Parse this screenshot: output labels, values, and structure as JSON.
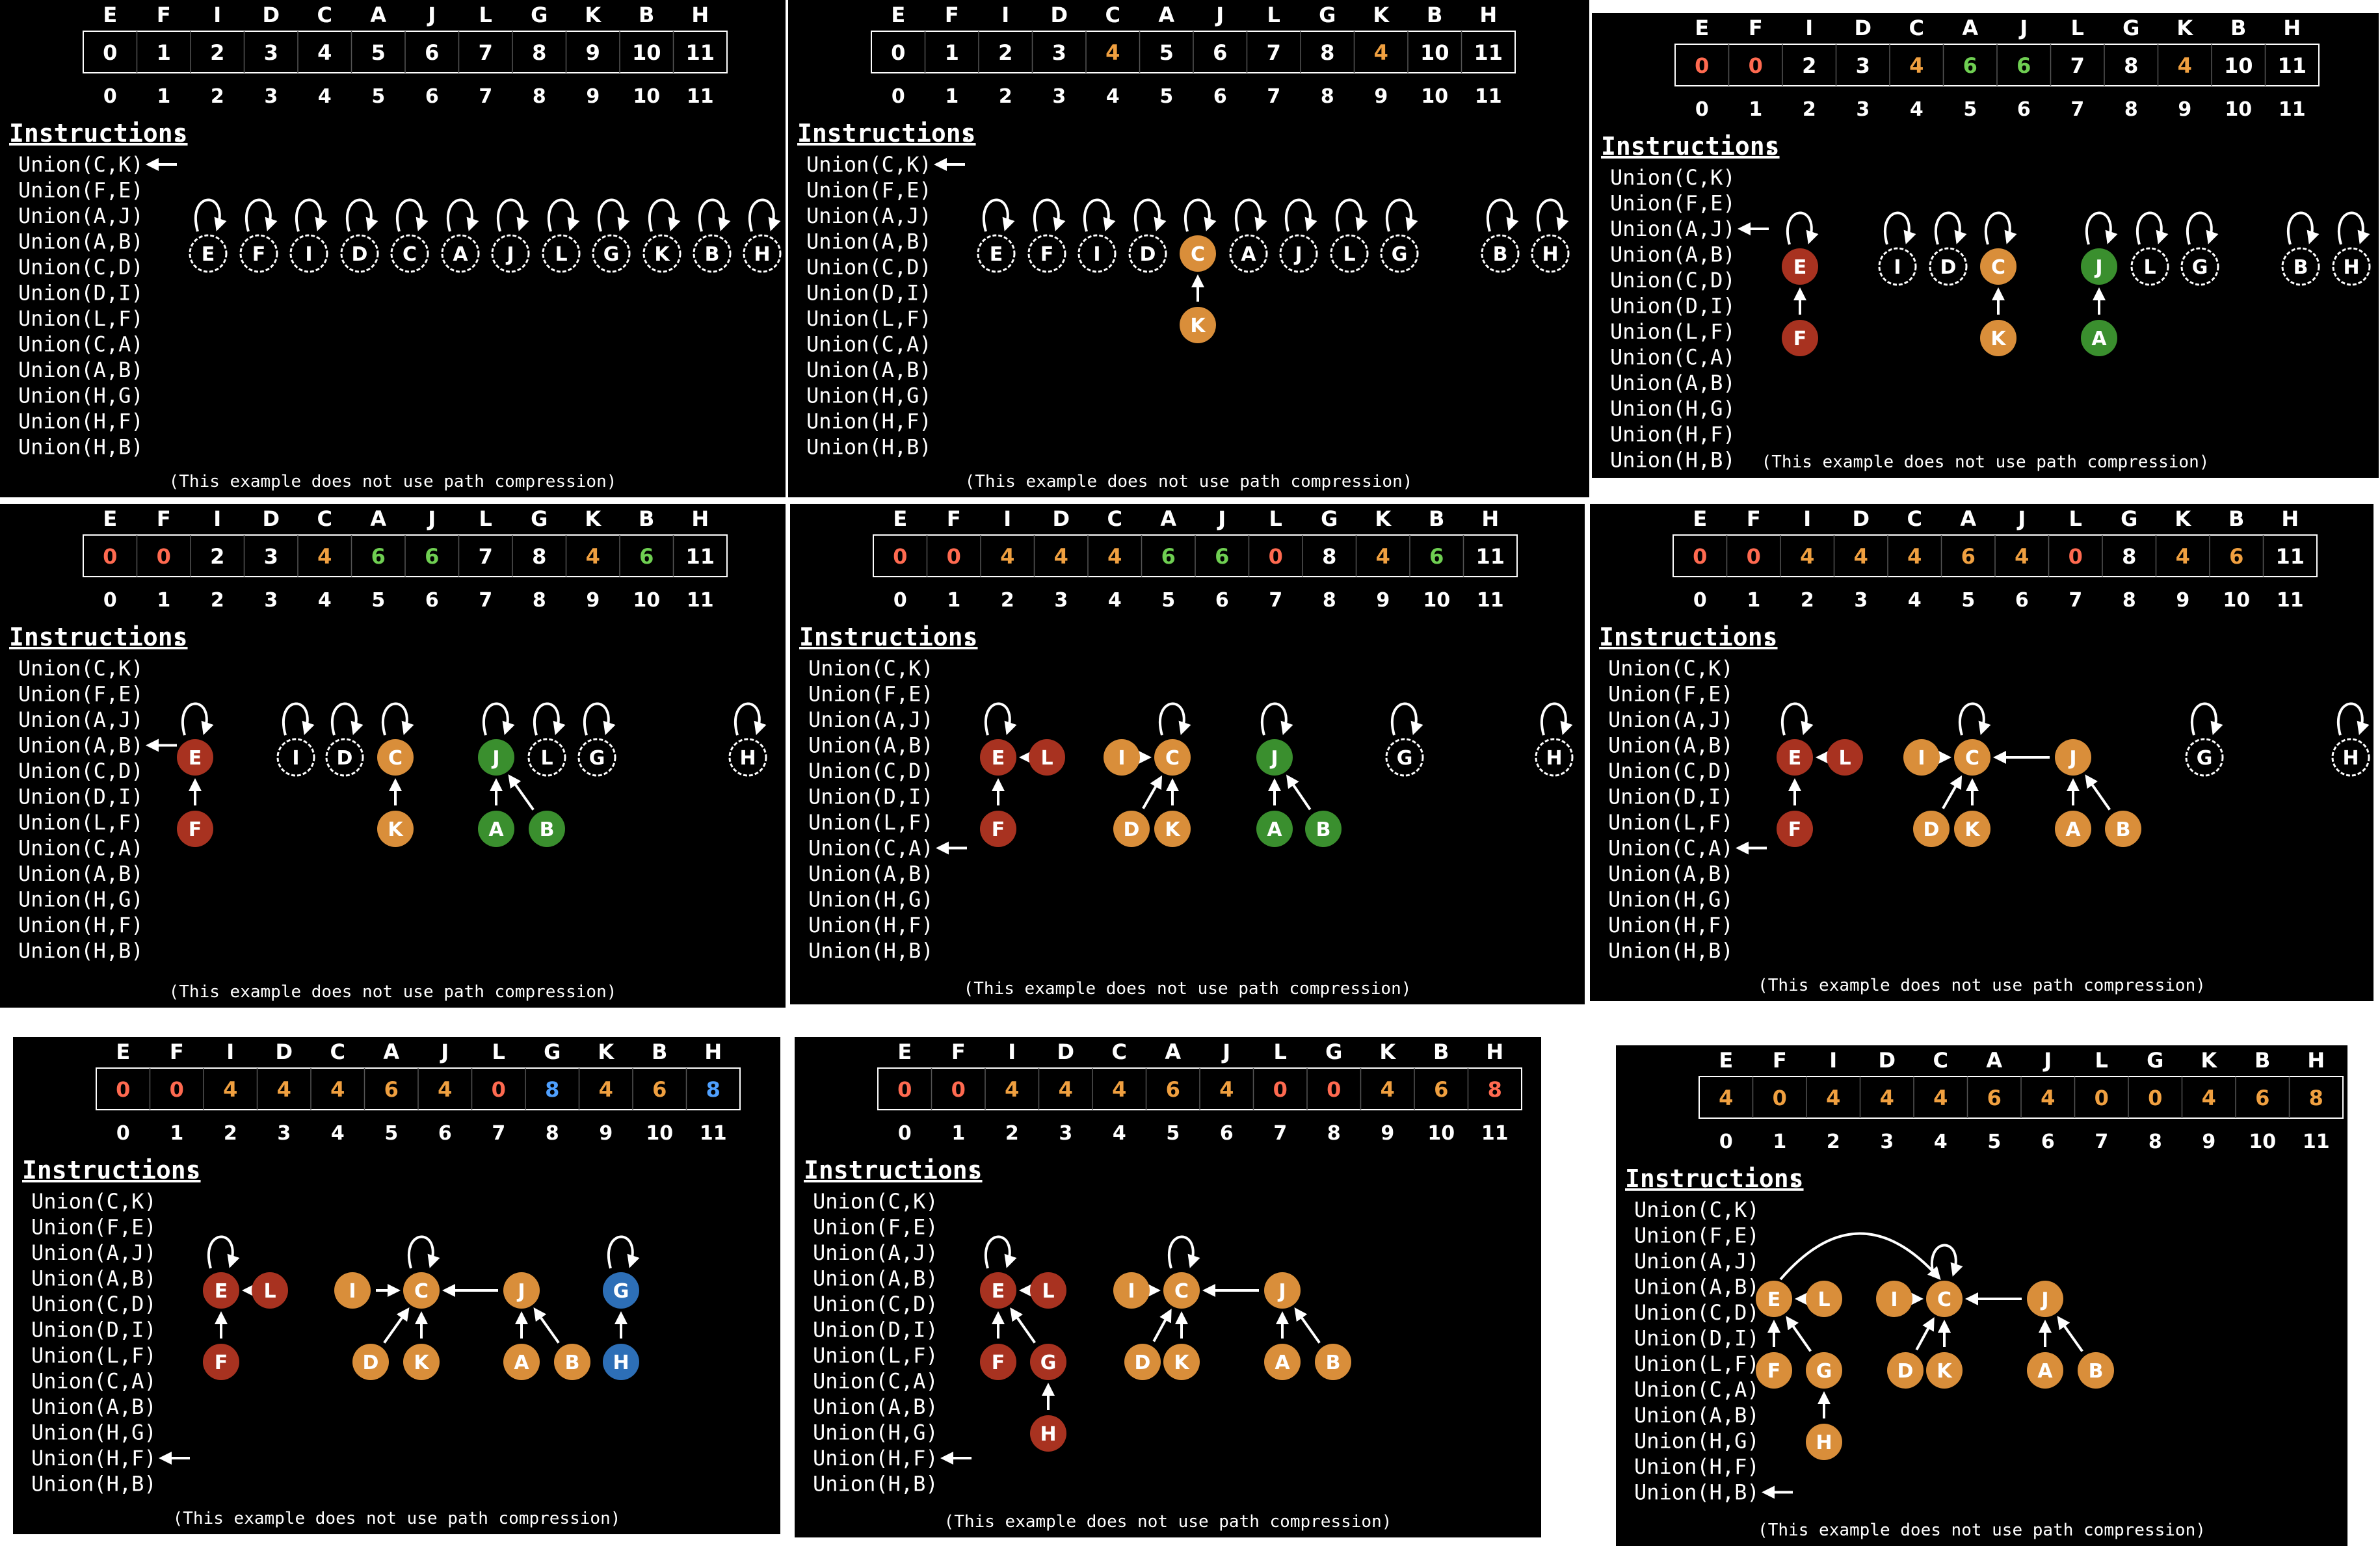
{
  "title": "",
  "letters": [
    "E",
    "F",
    "I",
    "D",
    "C",
    "A",
    "J",
    "L",
    "G",
    "K",
    "B",
    "H"
  ],
  "indices": [
    "0",
    "1",
    "2",
    "3",
    "4",
    "5",
    "6",
    "7",
    "8",
    "9",
    "10",
    "11"
  ],
  "instructions_heading": "Instructions",
  "instructions": [
    "Union(C,K)",
    "Union(F,E)",
    "Union(A,J)",
    "Union(A,B)",
    "Union(C,D)",
    "Union(D,I)",
    "Union(L,F)",
    "Union(C,A)",
    "Union(A,B)",
    "Union(H,G)",
    "Union(H,F)",
    "Union(H,B)"
  ],
  "footer_note": "(This example does not use path compression)",
  "colors": {
    "background": "#000000",
    "text": "#ffffff",
    "red": "#a83220",
    "orange": "#d98e3a",
    "green": "#3a8f2e",
    "blue": "#2d6fb7",
    "green_text": "#6fcf52",
    "blue_text": "#4fa0ff",
    "red_text": "#ff6a50",
    "orange_text": "#f0a040"
  },
  "panels": [
    {
      "name": "step-1",
      "array_values": [
        "0",
        "1",
        "2",
        "3",
        "4",
        "5",
        "6",
        "7",
        "8",
        "9",
        "10",
        "11"
      ],
      "value_colors": [
        "white",
        "white",
        "white",
        "white",
        "white",
        "white",
        "white",
        "white",
        "white",
        "white",
        "white",
        "white"
      ],
      "current_instruction": 0,
      "nodes": [
        {
          "label": "E",
          "color": "none",
          "root": true
        },
        {
          "label": "F",
          "color": "none",
          "root": true
        },
        {
          "label": "I",
          "color": "none",
          "root": true
        },
        {
          "label": "D",
          "color": "none",
          "root": true
        },
        {
          "label": "C",
          "color": "none",
          "root": true
        },
        {
          "label": "A",
          "color": "none",
          "root": true
        },
        {
          "label": "J",
          "color": "none",
          "root": true
        },
        {
          "label": "L",
          "color": "none",
          "root": true
        },
        {
          "label": "G",
          "color": "none",
          "root": true
        },
        {
          "label": "K",
          "color": "none",
          "root": true
        },
        {
          "label": "B",
          "color": "none",
          "root": true
        },
        {
          "label": "H",
          "color": "none",
          "root": true
        }
      ],
      "edges": []
    },
    {
      "name": "step-2",
      "array_values": [
        "0",
        "1",
        "2",
        "3",
        "4",
        "5",
        "6",
        "7",
        "8",
        "4",
        "10",
        "11"
      ],
      "value_colors": [
        "white",
        "white",
        "white",
        "white",
        "orange",
        "white",
        "white",
        "white",
        "white",
        "orange",
        "white",
        "white"
      ],
      "current_instruction": 0,
      "nodes": [
        {
          "label": "E",
          "color": "none",
          "root": true
        },
        {
          "label": "F",
          "color": "none",
          "root": true
        },
        {
          "label": "I",
          "color": "none",
          "root": true
        },
        {
          "label": "D",
          "color": "none",
          "root": true
        },
        {
          "label": "C",
          "color": "orange",
          "root": true
        },
        {
          "label": "A",
          "color": "none",
          "root": true
        },
        {
          "label": "J",
          "color": "none",
          "root": true
        },
        {
          "label": "L",
          "color": "none",
          "root": true
        },
        {
          "label": "G",
          "color": "none",
          "root": true
        },
        {
          "label": "K",
          "color": "orange",
          "root": false
        },
        {
          "label": "B",
          "color": "none",
          "root": true
        },
        {
          "label": "H",
          "color": "none",
          "root": true
        }
      ],
      "edges": [
        [
          "K",
          "C"
        ]
      ]
    },
    {
      "name": "step-3",
      "array_values": [
        "0",
        "0",
        "2",
        "3",
        "4",
        "6",
        "6",
        "7",
        "8",
        "4",
        "10",
        "11"
      ],
      "value_colors": [
        "red",
        "red",
        "white",
        "white",
        "orange",
        "green",
        "green",
        "white",
        "white",
        "orange",
        "white",
        "white"
      ],
      "current_instruction": 2,
      "nodes": [
        {
          "label": "E",
          "color": "red",
          "root": true
        },
        {
          "label": "F",
          "color": "red",
          "root": false
        },
        {
          "label": "I",
          "color": "none",
          "root": true
        },
        {
          "label": "D",
          "color": "none",
          "root": true
        },
        {
          "label": "C",
          "color": "orange",
          "root": true
        },
        {
          "label": "K",
          "color": "orange",
          "root": false
        },
        {
          "label": "J",
          "color": "green",
          "root": true
        },
        {
          "label": "A",
          "color": "green",
          "root": false
        },
        {
          "label": "L",
          "color": "none",
          "root": true
        },
        {
          "label": "G",
          "color": "none",
          "root": true
        },
        {
          "label": "B",
          "color": "none",
          "root": true
        },
        {
          "label": "H",
          "color": "none",
          "root": true
        }
      ],
      "edges": [
        [
          "F",
          "E"
        ],
        [
          "K",
          "C"
        ],
        [
          "A",
          "J"
        ]
      ]
    },
    {
      "name": "step-4",
      "array_values": [
        "0",
        "0",
        "2",
        "3",
        "4",
        "6",
        "6",
        "7",
        "8",
        "4",
        "6",
        "11"
      ],
      "value_colors": [
        "red",
        "red",
        "white",
        "white",
        "orange",
        "green",
        "green",
        "white",
        "white",
        "orange",
        "green",
        "white"
      ],
      "current_instruction": 3,
      "nodes": [
        {
          "label": "E",
          "color": "red",
          "root": true
        },
        {
          "label": "F",
          "color": "red",
          "root": false
        },
        {
          "label": "I",
          "color": "none",
          "root": true
        },
        {
          "label": "D",
          "color": "none",
          "root": true
        },
        {
          "label": "C",
          "color": "orange",
          "root": true
        },
        {
          "label": "K",
          "color": "orange",
          "root": false
        },
        {
          "label": "J",
          "color": "green",
          "root": true
        },
        {
          "label": "A",
          "color": "green",
          "root": false
        },
        {
          "label": "B",
          "color": "green",
          "root": false
        },
        {
          "label": "L",
          "color": "none",
          "root": true
        },
        {
          "label": "G",
          "color": "none",
          "root": true
        },
        {
          "label": "H",
          "color": "none",
          "root": true
        }
      ],
      "edges": [
        [
          "F",
          "E"
        ],
        [
          "K",
          "C"
        ],
        [
          "A",
          "J"
        ],
        [
          "B",
          "J"
        ]
      ]
    },
    {
      "name": "step-5",
      "array_values": [
        "0",
        "0",
        "4",
        "4",
        "4",
        "6",
        "6",
        "0",
        "8",
        "4",
        "6",
        "11"
      ],
      "value_colors": [
        "red",
        "red",
        "orange",
        "orange",
        "orange",
        "green",
        "green",
        "red",
        "white",
        "orange",
        "green",
        "white"
      ],
      "current_instruction": 7,
      "nodes": [
        {
          "label": "E",
          "color": "red",
          "root": true
        },
        {
          "label": "L",
          "color": "red",
          "root": false
        },
        {
          "label": "F",
          "color": "red",
          "root": false
        },
        {
          "label": "I",
          "color": "orange",
          "root": false
        },
        {
          "label": "C",
          "color": "orange",
          "root": true
        },
        {
          "label": "D",
          "color": "orange",
          "root": false
        },
        {
          "label": "K",
          "color": "orange",
          "root": false
        },
        {
          "label": "J",
          "color": "green",
          "root": true
        },
        {
          "label": "A",
          "color": "green",
          "root": false
        },
        {
          "label": "B",
          "color": "green",
          "root": false
        },
        {
          "label": "G",
          "color": "none",
          "root": true
        },
        {
          "label": "H",
          "color": "none",
          "root": true
        }
      ],
      "edges": [
        [
          "L",
          "E"
        ],
        [
          "F",
          "E"
        ],
        [
          "I",
          "C"
        ],
        [
          "D",
          "C"
        ],
        [
          "K",
          "C"
        ],
        [
          "A",
          "J"
        ],
        [
          "B",
          "J"
        ]
      ]
    },
    {
      "name": "step-6",
      "array_values": [
        "0",
        "0",
        "4",
        "4",
        "4",
        "6",
        "4",
        "0",
        "8",
        "4",
        "6",
        "11"
      ],
      "value_colors": [
        "red",
        "red",
        "orange",
        "orange",
        "orange",
        "orange",
        "orange",
        "red",
        "white",
        "orange",
        "orange",
        "white"
      ],
      "current_instruction": 7,
      "nodes": [
        {
          "label": "E",
          "color": "red",
          "root": true
        },
        {
          "label": "L",
          "color": "red",
          "root": false
        },
        {
          "label": "F",
          "color": "red",
          "root": false
        },
        {
          "label": "I",
          "color": "orange",
          "root": false
        },
        {
          "label": "C",
          "color": "orange",
          "root": true
        },
        {
          "label": "D",
          "color": "orange",
          "root": false
        },
        {
          "label": "K",
          "color": "orange",
          "root": false
        },
        {
          "label": "J",
          "color": "orange",
          "root": false
        },
        {
          "label": "A",
          "color": "orange",
          "root": false
        },
        {
          "label": "B",
          "color": "orange",
          "root": false
        },
        {
          "label": "G",
          "color": "none",
          "root": true
        },
        {
          "label": "H",
          "color": "none",
          "root": true
        }
      ],
      "edges": [
        [
          "L",
          "E"
        ],
        [
          "F",
          "E"
        ],
        [
          "I",
          "C"
        ],
        [
          "D",
          "C"
        ],
        [
          "K",
          "C"
        ],
        [
          "J",
          "C"
        ],
        [
          "A",
          "J"
        ],
        [
          "B",
          "J"
        ]
      ]
    },
    {
      "name": "step-7",
      "array_values": [
        "0",
        "0",
        "4",
        "4",
        "4",
        "6",
        "4",
        "0",
        "8",
        "4",
        "6",
        "8"
      ],
      "value_colors": [
        "red",
        "red",
        "orange",
        "orange",
        "orange",
        "orange",
        "orange",
        "red",
        "blue",
        "orange",
        "orange",
        "blue"
      ],
      "current_instruction": 10,
      "nodes": [
        {
          "label": "E",
          "color": "red",
          "root": true
        },
        {
          "label": "L",
          "color": "red",
          "root": false
        },
        {
          "label": "F",
          "color": "red",
          "root": false
        },
        {
          "label": "I",
          "color": "orange",
          "root": false
        },
        {
          "label": "C",
          "color": "orange",
          "root": true
        },
        {
          "label": "D",
          "color": "orange",
          "root": false
        },
        {
          "label": "K",
          "color": "orange",
          "root": false
        },
        {
          "label": "J",
          "color": "orange",
          "root": false
        },
        {
          "label": "A",
          "color": "orange",
          "root": false
        },
        {
          "label": "B",
          "color": "orange",
          "root": false
        },
        {
          "label": "G",
          "color": "blue",
          "root": true
        },
        {
          "label": "H",
          "color": "blue",
          "root": false
        }
      ],
      "edges": [
        [
          "L",
          "E"
        ],
        [
          "F",
          "E"
        ],
        [
          "I",
          "C"
        ],
        [
          "D",
          "C"
        ],
        [
          "K",
          "C"
        ],
        [
          "J",
          "C"
        ],
        [
          "A",
          "J"
        ],
        [
          "B",
          "J"
        ],
        [
          "H",
          "G"
        ]
      ]
    },
    {
      "name": "step-8",
      "array_values": [
        "0",
        "0",
        "4",
        "4",
        "4",
        "6",
        "4",
        "0",
        "0",
        "4",
        "6",
        "8"
      ],
      "value_colors": [
        "red",
        "red",
        "orange",
        "orange",
        "orange",
        "orange",
        "orange",
        "red",
        "red",
        "orange",
        "orange",
        "red"
      ],
      "current_instruction": 10,
      "nodes": [
        {
          "label": "E",
          "color": "red",
          "root": true
        },
        {
          "label": "L",
          "color": "red",
          "root": false
        },
        {
          "label": "F",
          "color": "red",
          "root": false
        },
        {
          "label": "G",
          "color": "red",
          "root": false
        },
        {
          "label": "H",
          "color": "red",
          "root": false
        },
        {
          "label": "I",
          "color": "orange",
          "root": false
        },
        {
          "label": "C",
          "color": "orange",
          "root": true
        },
        {
          "label": "D",
          "color": "orange",
          "root": false
        },
        {
          "label": "K",
          "color": "orange",
          "root": false
        },
        {
          "label": "J",
          "color": "orange",
          "root": false
        },
        {
          "label": "A",
          "color": "orange",
          "root": false
        },
        {
          "label": "B",
          "color": "orange",
          "root": false
        }
      ],
      "edges": [
        [
          "L",
          "E"
        ],
        [
          "F",
          "E"
        ],
        [
          "G",
          "E"
        ],
        [
          "H",
          "G"
        ],
        [
          "I",
          "C"
        ],
        [
          "D",
          "C"
        ],
        [
          "K",
          "C"
        ],
        [
          "J",
          "C"
        ],
        [
          "A",
          "J"
        ],
        [
          "B",
          "J"
        ]
      ]
    },
    {
      "name": "step-9",
      "array_values": [
        "4",
        "0",
        "4",
        "4",
        "4",
        "6",
        "4",
        "0",
        "0",
        "4",
        "6",
        "8"
      ],
      "value_colors": [
        "orange",
        "orange",
        "orange",
        "orange",
        "orange",
        "orange",
        "orange",
        "orange",
        "orange",
        "orange",
        "orange",
        "orange"
      ],
      "current_instruction": 11,
      "nodes": [
        {
          "label": "E",
          "color": "orange",
          "root": false
        },
        {
          "label": "L",
          "color": "orange",
          "root": false
        },
        {
          "label": "F",
          "color": "orange",
          "root": false
        },
        {
          "label": "G",
          "color": "orange",
          "root": false
        },
        {
          "label": "H",
          "color": "orange",
          "root": false
        },
        {
          "label": "I",
          "color": "orange",
          "root": false
        },
        {
          "label": "C",
          "color": "orange",
          "root": true
        },
        {
          "label": "D",
          "color": "orange",
          "root": false
        },
        {
          "label": "K",
          "color": "orange",
          "root": false
        },
        {
          "label": "J",
          "color": "orange",
          "root": false
        },
        {
          "label": "A",
          "color": "orange",
          "root": false
        },
        {
          "label": "B",
          "color": "orange",
          "root": false
        }
      ],
      "edges": [
        [
          "L",
          "E"
        ],
        [
          "F",
          "E"
        ],
        [
          "G",
          "E"
        ],
        [
          "H",
          "G"
        ],
        [
          "I",
          "C"
        ],
        [
          "D",
          "C"
        ],
        [
          "K",
          "C"
        ],
        [
          "J",
          "C"
        ],
        [
          "A",
          "J"
        ],
        [
          "B",
          "J"
        ],
        [
          "E",
          "C"
        ]
      ]
    }
  ]
}
